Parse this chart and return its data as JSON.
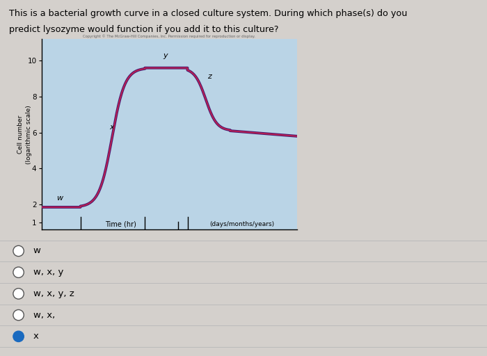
{
  "title_line1": "This is a bacterial growth curve in a closed culture system. During which phase(s) do you",
  "title_line2": "predict lysozyme would function if you add it to this culture?",
  "copyright_text": "Copyright © The McGraw-Hill Companies, Inc. Permission required for reproduction or display.",
  "ylabel": "Cell number\n(logarithmic scale)",
  "xlabel_left": "Time (hr)",
  "xlabel_right": "(days/months/years)",
  "chart_bg_color": "#bad4e6",
  "fig_bg": "#d4d0cc",
  "curve_color_outer": "#4a1870",
  "curve_color_inner": "#c02050",
  "yticks": [
    1,
    2,
    4,
    6,
    8,
    10
  ],
  "ytick_labels": [
    "1",
    "2",
    "4",
    "6",
    "8",
    "10"
  ],
  "options": [
    "w",
    "w, x, y",
    "w, x, y, z",
    "w, x,",
    "x"
  ],
  "selected_option": 4
}
